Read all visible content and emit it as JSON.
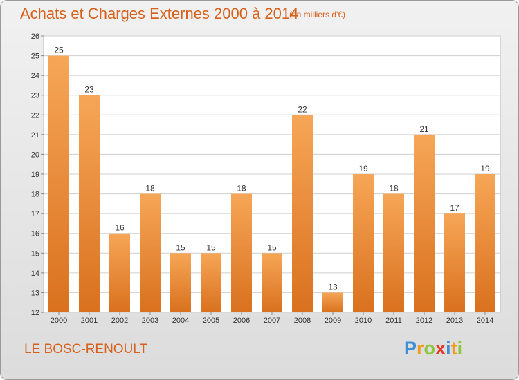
{
  "header": {
    "title": "Achats et Charges Externes 2000 à 2014",
    "subtitle": "(en milliers d'€)"
  },
  "footer": {
    "commune": "LE BOSC-RENOULT",
    "logo_text": "Proxiti"
  },
  "colors": {
    "bar_top": "#f6a657",
    "bar_bottom": "#d9711e",
    "accent_text": "#d8601a",
    "grid": "#cfcfcf"
  },
  "chart_data": {
    "type": "bar",
    "categories": [
      "2000",
      "2001",
      "2002",
      "2003",
      "2004",
      "2005",
      "2006",
      "2007",
      "2008",
      "2009",
      "2010",
      "2011",
      "2012",
      "2013",
      "2014"
    ],
    "values": [
      25,
      23,
      16,
      18,
      15,
      15,
      18,
      15,
      22,
      13,
      19,
      18,
      21,
      17,
      19
    ],
    "ylim": [
      12,
      26
    ],
    "yticks": [
      12,
      13,
      14,
      15,
      16,
      17,
      18,
      19,
      20,
      21,
      22,
      23,
      24,
      25,
      26
    ],
    "grid": true,
    "legend": "none"
  }
}
